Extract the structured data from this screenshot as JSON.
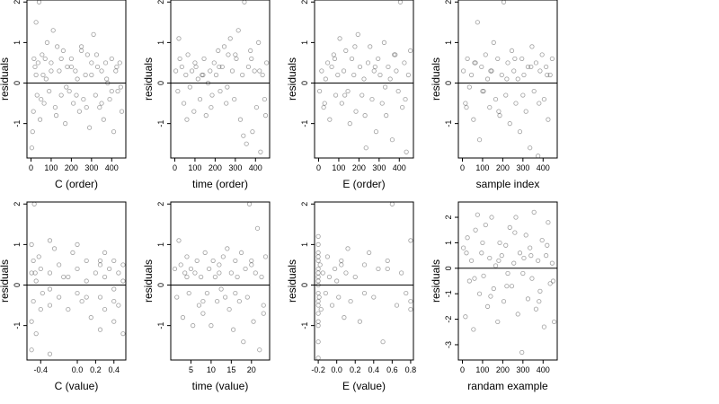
{
  "chart_data": [
    {
      "type": "scatter",
      "xlabel": "C (order)",
      "ylabel": "residuals",
      "xticks": [
        "0",
        "100",
        "200",
        "300",
        "400"
      ],
      "yticks": [
        "-1",
        "0",
        "1",
        "2"
      ],
      "xlim": [
        -20,
        470
      ],
      "ylim": [
        -1.85,
        2.05
      ],
      "hline": 0,
      "x": [
        4,
        8,
        12,
        15,
        20,
        25,
        30,
        35,
        40,
        45,
        55,
        60,
        65,
        70,
        80,
        90,
        100,
        110,
        120,
        130,
        140,
        150,
        160,
        170,
        180,
        190,
        200,
        210,
        220,
        230,
        240,
        250,
        260,
        270,
        280,
        290,
        300,
        310,
        320,
        330,
        340,
        350,
        360,
        370,
        380,
        390,
        400,
        410,
        420,
        430,
        440,
        450,
        25,
        50,
        75,
        100,
        125,
        150,
        175,
        200,
        225,
        250,
        275,
        300,
        325,
        350,
        375,
        400,
        425,
        445
      ],
      "y": [
        -1.6,
        -1.2,
        -0.7,
        0.6,
        0.4,
        1.5,
        -0.3,
        0.5,
        2.0,
        -0.9,
        0.7,
        0.2,
        -0.5,
        0.6,
        1.0,
        -0.2,
        0.5,
        1.3,
        -0.6,
        0.9,
        0.3,
        -0.3,
        0.8,
        -1.0,
        0.4,
        -0.2,
        0.6,
        -0.5,
        0.3,
        0.1,
        -0.7,
        0.9,
        -0.4,
        0.2,
        0.7,
        -1.1,
        0.5,
        1.2,
        -0.3,
        0.4,
        -0.6,
        0.3,
        -0.9,
        0.5,
        0.0,
        -0.4,
        0.6,
        -1.2,
        0.3,
        -0.2,
        0.5,
        -0.7,
        0.2,
        -0.4,
        0.1,
        0.3,
        -0.8,
        0.6,
        -0.1,
        0.4,
        -0.3,
        0.8,
        -0.6,
        0.2,
        0.7,
        -0.5,
        0.1,
        -0.2,
        0.4,
        -0.1
      ]
    },
    {
      "type": "scatter",
      "xlabel": "time (order)",
      "ylabel": "residuals",
      "xticks": [
        "0",
        "100",
        "200",
        "300",
        "400"
      ],
      "yticks": [
        "-1",
        "0",
        "1",
        "2"
      ],
      "xlim": [
        -20,
        470
      ],
      "ylim": [
        -1.85,
        2.05
      ],
      "hline": 0,
      "x": [
        5,
        15,
        25,
        35,
        45,
        55,
        65,
        75,
        85,
        95,
        105,
        115,
        125,
        135,
        145,
        155,
        165,
        175,
        185,
        195,
        205,
        215,
        225,
        235,
        245,
        255,
        265,
        275,
        285,
        295,
        305,
        315,
        325,
        335,
        345,
        355,
        365,
        375,
        385,
        395,
        405,
        415,
        425,
        435,
        445,
        455,
        20,
        60,
        100,
        140,
        180,
        220,
        260,
        300,
        340,
        380,
        420,
        450
      ],
      "y": [
        0.3,
        -0.2,
        0.6,
        0.4,
        -0.5,
        0.2,
        0.7,
        -0.1,
        0.3,
        -0.7,
        0.4,
        0.1,
        -0.4,
        0.2,
        0.6,
        -0.8,
        0.0,
        0.3,
        -0.3,
        0.5,
        0.2,
        0.8,
        -0.2,
        0.4,
        0.9,
        -0.5,
        0.7,
        1.1,
        0.3,
        -0.4,
        0.6,
        1.3,
        -0.9,
        0.2,
        2.0,
        -1.5,
        0.4,
        0.8,
        -1.2,
        0.3,
        -0.6,
        1.0,
        -1.7,
        0.2,
        -0.4,
        0.5,
        1.1,
        -0.9,
        0.5,
        0.2,
        -0.6,
        0.4,
        -0.1,
        0.7,
        -1.3,
        0.6,
        0.3,
        -0.8
      ]
    },
    {
      "type": "scatter",
      "xlabel": "E (order)",
      "ylabel": "residuals",
      "xticks": [
        "0",
        "100",
        "200",
        "300",
        "400"
      ],
      "yticks": [
        "-1",
        "0",
        "1",
        "2"
      ],
      "xlim": [
        -20,
        470
      ],
      "ylim": [
        -1.85,
        2.05
      ],
      "hline": 0,
      "x": [
        5,
        15,
        25,
        35,
        45,
        55,
        65,
        75,
        85,
        95,
        105,
        115,
        125,
        135,
        145,
        155,
        165,
        175,
        185,
        195,
        205,
        215,
        225,
        235,
        245,
        255,
        265,
        275,
        285,
        295,
        305,
        315,
        325,
        335,
        345,
        355,
        365,
        375,
        385,
        395,
        405,
        415,
        425,
        435,
        445,
        455,
        30,
        80,
        130,
        180,
        230,
        280,
        330,
        380,
        430
      ],
      "y": [
        -0.2,
        0.3,
        -0.6,
        0.1,
        0.5,
        -0.9,
        0.4,
        0.7,
        -0.3,
        0.2,
        1.1,
        -0.5,
        0.3,
        0.8,
        -0.2,
        -1.0,
        0.6,
        0.2,
        -0.7,
        1.2,
        0.4,
        -0.3,
        0.1,
        -1.6,
        0.5,
        0.9,
        -0.4,
        0.3,
        -1.2,
        0.6,
        0.2,
        -0.5,
        1.0,
        -0.8,
        0.4,
        0.1,
        -1.4,
        0.7,
        0.3,
        -0.2,
        2.0,
        -0.6,
        0.5,
        -1.7,
        0.2,
        0.8,
        -0.5,
        0.6,
        -0.3,
        0.9,
        -0.8,
        0.4,
        -0.1,
        0.7,
        -0.4
      ]
    },
    {
      "type": "scatter",
      "xlabel": "sample index",
      "ylabel": "residuals",
      "xticks": [
        "0",
        "100",
        "200",
        "300",
        "400"
      ],
      "yticks": [
        "-1",
        "0",
        "1",
        "2"
      ],
      "xlim": [
        -20,
        470
      ],
      "ylim": [
        -1.85,
        2.05
      ],
      "hline": 0,
      "x": [
        5,
        15,
        25,
        35,
        45,
        55,
        65,
        75,
        85,
        95,
        105,
        115,
        125,
        135,
        145,
        155,
        165,
        175,
        185,
        195,
        205,
        215,
        225,
        235,
        245,
        255,
        265,
        275,
        285,
        295,
        305,
        315,
        325,
        335,
        345,
        355,
        365,
        375,
        385,
        395,
        405,
        415,
        425,
        435,
        445,
        20,
        60,
        100,
        140,
        180,
        220,
        260,
        300,
        340,
        380,
        420
      ],
      "y": [
        0.3,
        -0.5,
        0.6,
        -0.1,
        0.2,
        -0.9,
        0.5,
        1.5,
        -1.4,
        0.4,
        -0.2,
        0.7,
        0.1,
        -0.6,
        0.3,
        1.0,
        -0.4,
        0.6,
        -0.8,
        0.2,
        2.0,
        -0.3,
        0.5,
        -1.0,
        0.8,
        0.3,
        -0.5,
        0.1,
        -1.2,
        0.6,
        0.2,
        -0.7,
        0.4,
        -1.6,
        0.9,
        -0.2,
        0.5,
        -1.8,
        0.3,
        0.7,
        -0.4,
        0.4,
        -0.9,
        0.2,
        0.6,
        -0.6,
        0.5,
        -0.2,
        0.3,
        -0.7,
        0.1,
        0.6,
        -0.3,
        0.4,
        -0.5,
        0.2
      ]
    },
    {
      "type": "scatter",
      "xlabel": "C (value)",
      "ylabel": "residuals",
      "xticks": [
        "-0.4",
        "0.0",
        "0.2",
        "0.4"
      ],
      "yticks": [
        "-1",
        "0",
        "1",
        "2"
      ],
      "xlim": [
        -0.55,
        0.53
      ],
      "ylim": [
        -1.85,
        2.05
      ],
      "hline": 0,
      "x": [
        -0.5,
        -0.5,
        -0.5,
        -0.5,
        -0.48,
        -0.48,
        -0.47,
        -0.45,
        -0.45,
        -0.42,
        -0.4,
        -0.4,
        -0.38,
        -0.3,
        -0.3,
        -0.3,
        -0.3,
        -0.25,
        -0.2,
        -0.2,
        -0.15,
        -0.1,
        -0.05,
        0.0,
        0.0,
        0.0,
        0.05,
        0.1,
        0.1,
        0.15,
        0.2,
        0.25,
        0.25,
        0.25,
        0.3,
        0.3,
        0.3,
        0.35,
        0.4,
        0.4,
        0.4,
        0.45,
        0.45,
        0.5,
        0.5,
        0.5,
        -0.46,
        -0.3,
        -0.1,
        0.1,
        0.25,
        0.4
      ],
      "y": [
        -1.6,
        -0.9,
        0.3,
        1.0,
        -0.4,
        0.6,
        2.0,
        -1.2,
        0.1,
        0.7,
        -0.6,
        0.4,
        -0.2,
        1.1,
        -0.5,
        0.3,
        -1.7,
        0.9,
        -0.3,
        0.5,
        0.2,
        -0.6,
        0.8,
        0.4,
        -0.2,
        1.0,
        -0.4,
        0.6,
        0.1,
        -0.8,
        0.3,
        -1.1,
        0.5,
        -0.3,
        0.8,
        -0.6,
        0.2,
        0.4,
        -0.9,
        0.6,
        -0.1,
        0.3,
        -0.5,
        0.5,
        -1.2,
        0.1,
        0.3,
        -0.1,
        0.2,
        -0.3,
        0.6,
        -0.4
      ]
    },
    {
      "type": "scatter",
      "xlabel": "time (value)",
      "ylabel": "residuals",
      "xticks": [
        "5",
        "10",
        "15",
        "20"
      ],
      "yticks": [
        "-1",
        "0",
        "1",
        "2"
      ],
      "xlim": [
        0,
        24.5
      ],
      "ylim": [
        -1.85,
        2.05
      ],
      "hline": 0,
      "x": [
        1,
        1.5,
        2,
        2.5,
        3,
        3.5,
        4,
        4.5,
        5,
        5.5,
        6,
        6.5,
        7,
        7.5,
        8,
        8.5,
        9,
        9.5,
        10,
        10.5,
        11,
        11.5,
        12,
        12.5,
        13,
        13.5,
        14,
        14.5,
        15,
        15.5,
        16,
        16.5,
        17,
        17.5,
        18,
        18.5,
        19,
        19.5,
        20,
        20.5,
        21,
        21.5,
        22,
        22.5,
        23,
        23.5,
        4,
        8,
        12,
        16,
        20,
        23
      ],
      "y": [
        0.4,
        -0.3,
        1.1,
        0.5,
        -0.8,
        0.3,
        0.7,
        -0.2,
        0.4,
        -1.0,
        0.3,
        0.6,
        -0.5,
        0.2,
        -0.7,
        0.8,
        -0.2,
        0.4,
        -1.0,
        0.6,
        0.2,
        -0.4,
        0.5,
        -0.1,
        0.7,
        -0.3,
        0.9,
        -0.6,
        0.3,
        -1.1,
        0.6,
        0.2,
        -0.4,
        0.8,
        -1.4,
        0.4,
        -0.3,
        2.0,
        0.5,
        -0.9,
        0.3,
        1.4,
        -1.6,
        0.2,
        -0.5,
        0.7,
        0.2,
        -0.4,
        0.3,
        -0.2,
        0.6,
        -0.7
      ]
    },
    {
      "type": "scatter",
      "xlabel": "E (value)",
      "ylabel": "residuals",
      "xticks": [
        "-0.2",
        "0.0",
        "0.2",
        "0.4",
        "0.6",
        "0.8"
      ],
      "yticks": [
        "-1",
        "0",
        "1",
        "2"
      ],
      "xlim": [
        -0.24,
        0.83
      ],
      "ylim": [
        -1.85,
        2.05
      ],
      "hline": 0,
      "x": [
        -0.2,
        -0.2,
        -0.2,
        -0.2,
        -0.2,
        -0.2,
        -0.2,
        -0.2,
        -0.2,
        -0.2,
        -0.2,
        -0.2,
        -0.2,
        -0.2,
        -0.19,
        -0.18,
        -0.17,
        -0.15,
        -0.12,
        -0.1,
        -0.08,
        -0.05,
        -0.02,
        0.0,
        0.02,
        0.05,
        0.08,
        0.1,
        0.12,
        0.15,
        0.2,
        0.25,
        0.3,
        0.35,
        0.4,
        0.45,
        0.5,
        0.55,
        0.6,
        0.65,
        0.7,
        0.75,
        0.8,
        0.8,
        -0.2,
        -0.2,
        -0.2,
        -0.2,
        0.05,
        0.3,
        0.55,
        0.8
      ],
      "y": [
        -1.8,
        -1.4,
        -1.0,
        -0.7,
        -0.4,
        -0.2,
        0.0,
        0.2,
        0.4,
        0.6,
        0.8,
        1.0,
        1.2,
        0.1,
        -0.3,
        0.5,
        -0.6,
        0.3,
        -0.2,
        0.7,
        0.2,
        -0.5,
        0.4,
        0.1,
        -0.3,
        0.6,
        -0.8,
        0.3,
        0.9,
        -0.4,
        0.2,
        -0.9,
        0.5,
        0.8,
        -0.3,
        0.4,
        -1.4,
        0.6,
        2.0,
        -0.5,
        0.3,
        -0.2,
        1.1,
        -0.6,
        -0.9,
        -0.5,
        0.3,
        0.7,
        0.5,
        -0.2,
        0.4,
        -0.4
      ]
    },
    {
      "type": "scatter",
      "xlabel": "randam example",
      "ylabel": "residuals",
      "xticks": [
        "0",
        "100",
        "200",
        "300",
        "400"
      ],
      "yticks": [
        "-3",
        "-2",
        "-1",
        "0",
        "1",
        "2"
      ],
      "xlim": [
        -20,
        470
      ],
      "ylim": [
        -3.6,
        2.6
      ],
      "hline": 0,
      "x": [
        5,
        15,
        25,
        35,
        45,
        55,
        65,
        75,
        85,
        95,
        105,
        115,
        125,
        135,
        145,
        155,
        165,
        175,
        185,
        195,
        205,
        215,
        225,
        235,
        245,
        255,
        265,
        275,
        285,
        295,
        305,
        315,
        325,
        335,
        345,
        355,
        365,
        375,
        385,
        395,
        405,
        415,
        425,
        435,
        445,
        455,
        20,
        60,
        100,
        140,
        180,
        220,
        260,
        300,
        340,
        380,
        420,
        450
      ],
      "y": [
        0.8,
        -1.9,
        1.2,
        -0.5,
        0.3,
        -2.4,
        1.5,
        2.1,
        -1.0,
        0.6,
        -0.3,
        1.7,
        -1.5,
        0.4,
        2.0,
        -0.8,
        0.1,
        -2.1,
        1.0,
        0.5,
        -1.3,
        0.9,
        -0.2,
        1.6,
        -0.7,
        0.2,
        2.0,
        -1.8,
        0.6,
        -3.3,
        0.4,
        1.3,
        -1.2,
        0.8,
        -0.4,
        2.2,
        -1.6,
        0.3,
        -0.9,
        1.1,
        -2.3,
        0.5,
        1.8,
        -0.6,
        0.2,
        -2.1,
        0.6,
        -0.4,
        1.0,
        -1.1,
        0.3,
        -0.7,
        1.4,
        -0.2,
        0.5,
        -1.3,
        0.9,
        -0.5
      ]
    }
  ]
}
